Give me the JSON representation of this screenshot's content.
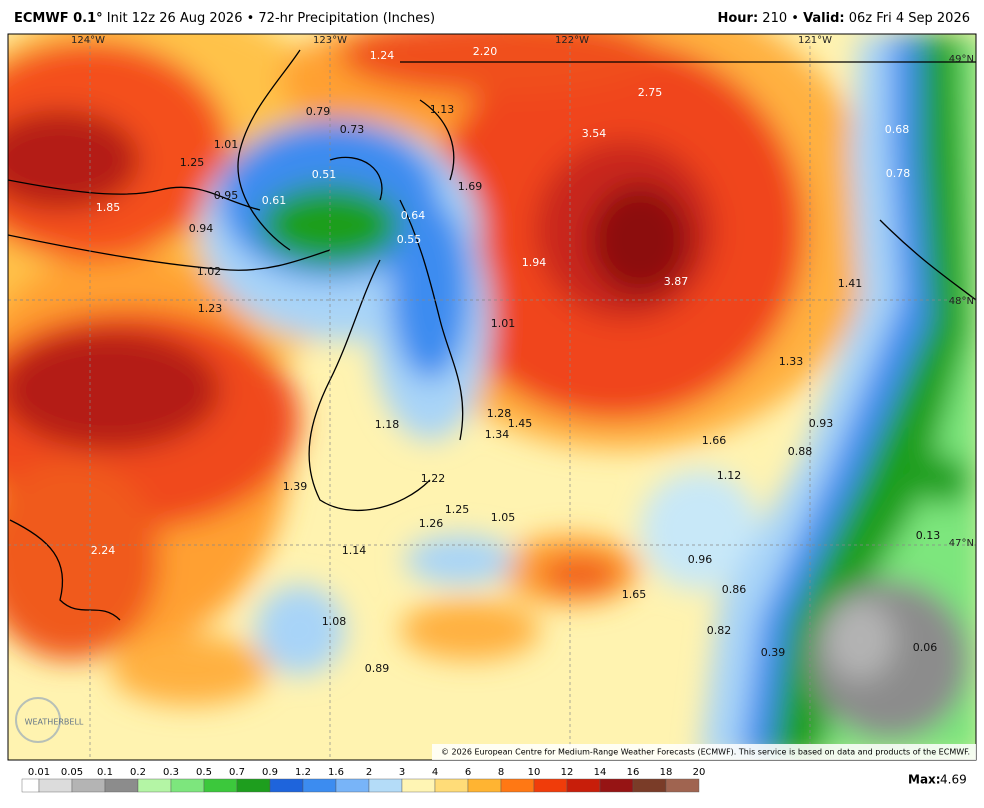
{
  "header": {
    "title_bold": "ECMWF 0.1°",
    "title_rest": "Init 12z 26 Aug 2026 • 72-hr Precipitation (Inches)",
    "hour_label": "Hour:",
    "hour": "210 •",
    "valid_label": "Valid:",
    "valid": "06z Fri 4 Sep 2026"
  },
  "map": {
    "lon_labels": [
      "124°W",
      "123°W",
      "122°W",
      "121°W"
    ],
    "lat_labels": [
      "49°N",
      "48°N",
      "47°N"
    ],
    "values": [
      "1.24",
      "2.20",
      "2.75",
      "1.13",
      "0.79",
      "0.73",
      "3.54",
      "0.68",
      "1.01",
      "1.25",
      "0.51",
      "0.78",
      "1.69",
      "0.95",
      "0.61",
      "1.85",
      "0.64",
      "0.94",
      "0.55",
      "1.94",
      "1.02",
      "3.87",
      "1.41",
      "1.23",
      "1.01",
      "1.33",
      "1.28",
      "1.45",
      "0.93",
      "1.18",
      "1.34",
      "1.66",
      "0.88",
      "1.12",
      "1.22",
      "1.39",
      "1.25",
      "1.05",
      "1.26",
      "0.13",
      "1.14",
      "2.24",
      "0.96",
      "0.86",
      "1.65",
      "1.08",
      "0.82",
      "0.39",
      "0.06",
      "0.89"
    ],
    "copyright": "© 2026 European Centre for Medium-Range Weather Forecasts (ECMWF). This service is based on data and products of the ECMWF.",
    "logo": "WEATHERBELL"
  },
  "legend": {
    "labels": [
      "0.01",
      "0.05",
      "0.1",
      "0.2",
      "0.3",
      "0.5",
      "0.7",
      "0.9",
      "1.2",
      "1.6",
      "2",
      "3",
      "4",
      "6",
      "8",
      "10",
      "12",
      "14",
      "16",
      "18",
      "20"
    ],
    "max_label": "Max:",
    "max": "4.69"
  }
}
